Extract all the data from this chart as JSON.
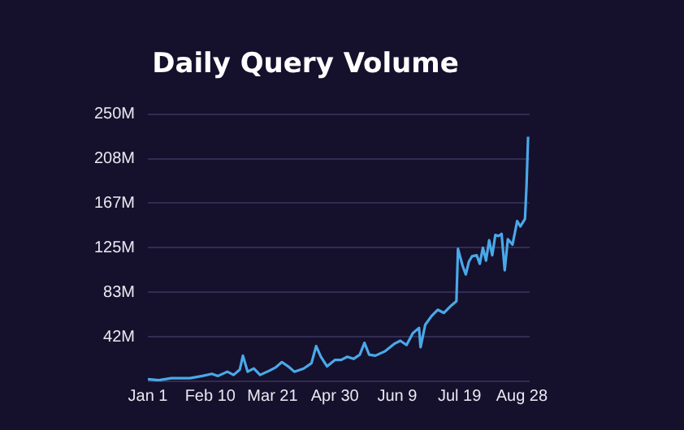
{
  "chart_data": {
    "type": "line",
    "title": "Daily Query Volume",
    "x": [
      "--01-01",
      "--01-08",
      "--01-16",
      "--01-28",
      "--02-05",
      "--02-11",
      "--02-15",
      "--02-21",
      "--02-25",
      "--02-29",
      "--03-02",
      "--03-05",
      "--03-09",
      "--03-13",
      "--03-19",
      "--03-23",
      "--03-27",
      "--03-31",
      "--04-04",
      "--04-10",
      "--04-15",
      "--04-18",
      "--04-21",
      "--04-25",
      "--04-30",
      "--05-04",
      "--05-08",
      "--05-12",
      "--05-16",
      "--05-19",
      "--05-22",
      "--05-26",
      "--06-01",
      "--06-07",
      "--06-11",
      "--06-15",
      "--06-19",
      "--06-23",
      "--06-24",
      "--06-27",
      "--07-01",
      "--07-05",
      "--07-09",
      "--07-13",
      "--07-17",
      "--07-18",
      "--07-21",
      "--07-23",
      "--07-25",
      "--07-27",
      "--07-30",
      "--08-01",
      "--08-03",
      "--08-05",
      "--08-07",
      "--08-09",
      "--08-11",
      "--08-13",
      "--08-15",
      "--08-17",
      "--08-19",
      "--08-22",
      "--08-25",
      "--08-27",
      "--08-30",
      "--08-31",
      "--09-01"
    ],
    "series": [
      {
        "color": "#4aa8e8",
        "values": [
          2,
          1,
          3,
          3,
          5,
          7,
          5,
          9,
          6,
          11,
          24,
          9,
          12,
          6,
          10,
          13,
          18,
          14,
          9,
          12,
          17,
          33,
          23,
          14,
          20,
          20,
          23,
          21,
          25,
          36,
          25,
          24,
          28,
          35,
          38,
          34,
          45,
          50,
          32,
          53,
          61,
          67,
          64,
          70,
          75,
          124,
          108,
          100,
          112,
          117,
          118,
          110,
          125,
          113,
          132,
          118,
          137,
          136,
          138,
          104,
          133,
          128,
          150,
          145,
          152,
          183,
          229
        ]
      }
    ],
    "xlim": [
      "--01-01",
      "--09-02"
    ],
    "xticks": [
      {
        "value": "--01-01",
        "label": "Jan 1"
      },
      {
        "value": "--02-10",
        "label": "Feb 10"
      },
      {
        "value": "--03-21",
        "label": "Mar 21"
      },
      {
        "value": "--04-30",
        "label": "Apr 30"
      },
      {
        "value": "--06-09",
        "label": "Jun 9"
      },
      {
        "value": "--07-19",
        "label": "Jul 19"
      },
      {
        "value": "--08-28",
        "label": "Aug 28"
      }
    ],
    "ylim": [
      0,
      250
    ],
    "yticks": [
      {
        "value": 0,
        "label": null
      },
      {
        "value": 41.7,
        "label": "42M"
      },
      {
        "value": 83.3,
        "label": "83M"
      },
      {
        "value": 125,
        "label": "125M"
      },
      {
        "value": 166.7,
        "label": "167M"
      },
      {
        "value": 208.3,
        "label": "208M"
      },
      {
        "value": 250,
        "label": "250M"
      }
    ],
    "grid": "y",
    "legend": false,
    "marker": "none",
    "line_style": "solid"
  }
}
